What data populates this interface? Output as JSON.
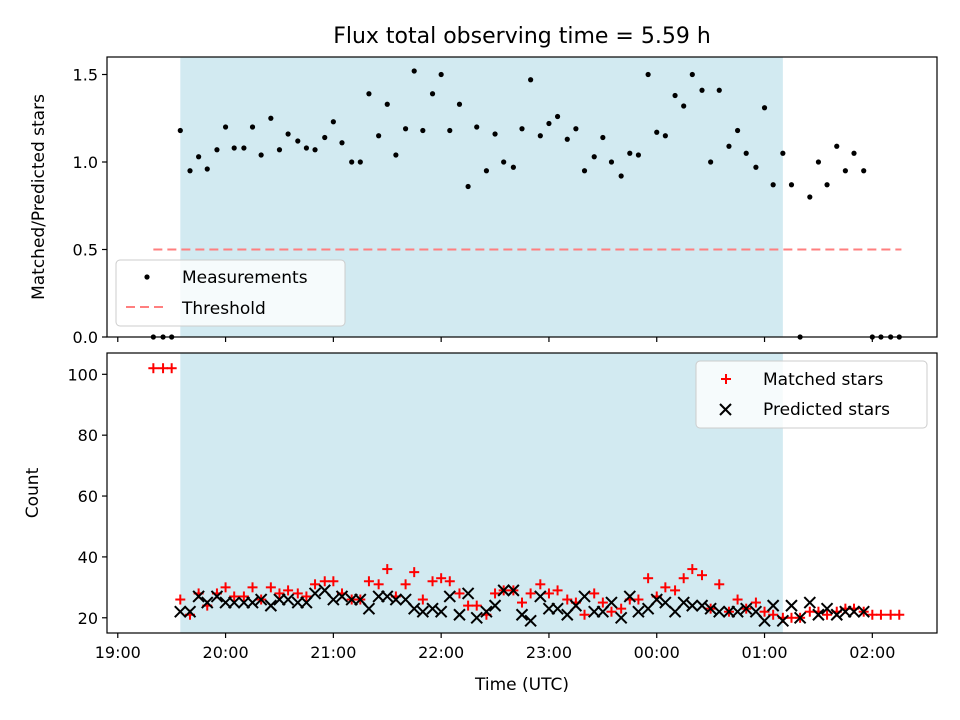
{
  "title": "Flux total observing time = 5.59 h",
  "colors": {
    "measurement": "#000000",
    "threshold": "#ff7f7f",
    "matched": "#ff0000",
    "predicted": "#000000",
    "observing_band": "#add8e6"
  },
  "chart_data": [
    {
      "type": "scatter",
      "panel": "top",
      "title": "Flux total observing time = 5.59 h",
      "xlabel": "",
      "ylabel": "Matched/Predicted stars",
      "x_units": "hours since 19:00 UTC",
      "xlim": [
        -0.1,
        7.6
      ],
      "ylim": [
        0.0,
        1.6
      ],
      "y_ticks": [
        "0.0",
        "0.5",
        "1.0",
        "1.5"
      ],
      "grid": false,
      "legend_position": "lower-left",
      "observing_band": [
        0.58,
        6.17
      ],
      "threshold": {
        "name": "Threshold",
        "y": 0.5,
        "x_range": [
          0.33,
          7.27
        ],
        "style": "dashed"
      },
      "series": [
        {
          "name": "Measurements",
          "x": [
            0.33,
            0.42,
            0.5,
            0.58,
            0.67,
            0.75,
            0.83,
            0.92,
            1.0,
            1.08,
            1.17,
            1.25,
            1.33,
            1.42,
            1.5,
            1.58,
            1.67,
            1.75,
            1.83,
            1.92,
            2.0,
            2.08,
            2.17,
            2.25,
            2.33,
            2.42,
            2.5,
            2.58,
            2.67,
            2.75,
            2.83,
            2.92,
            3.0,
            3.08,
            3.17,
            3.25,
            3.33,
            3.42,
            3.5,
            3.58,
            3.67,
            3.75,
            3.83,
            3.92,
            4.0,
            4.08,
            4.17,
            4.25,
            4.33,
            4.42,
            4.5,
            4.58,
            4.67,
            4.75,
            4.83,
            4.92,
            5.0,
            5.08,
            5.17,
            5.25,
            5.33,
            5.42,
            5.5,
            5.58,
            5.67,
            5.75,
            5.83,
            5.92,
            6.0,
            6.08,
            6.17,
            6.25,
            6.33,
            6.42,
            6.5,
            6.58,
            6.67,
            6.75,
            6.83,
            6.92,
            7.0,
            7.08,
            7.17,
            7.25
          ],
          "y": [
            0.0,
            0.0,
            0.0,
            1.18,
            0.95,
            1.03,
            0.96,
            1.07,
            1.2,
            1.08,
            1.08,
            1.2,
            1.04,
            1.25,
            1.07,
            1.16,
            1.12,
            1.08,
            1.07,
            1.14,
            1.23,
            1.11,
            1.0,
            1.0,
            1.39,
            1.15,
            1.33,
            1.04,
            1.19,
            1.52,
            1.18,
            1.39,
            1.5,
            1.18,
            1.33,
            0.86,
            1.2,
            0.95,
            1.16,
            1.0,
            0.97,
            1.19,
            1.47,
            1.15,
            1.22,
            1.26,
            1.13,
            1.19,
            0.95,
            1.03,
            1.14,
            1.0,
            0.92,
            1.05,
            1.04,
            1.5,
            1.17,
            1.15,
            1.38,
            1.32,
            1.5,
            1.41,
            1.0,
            1.41,
            1.09,
            1.18,
            1.05,
            0.97,
            1.31,
            0.87,
            1.05,
            0.87,
            0.0,
            0.8,
            1.0,
            0.87,
            1.09,
            0.95,
            1.05,
            0.95,
            0.0,
            0.0,
            0.0,
            0.0
          ]
        }
      ]
    },
    {
      "type": "scatter",
      "panel": "bottom",
      "xlabel": "Time (UTC)",
      "ylabel": "Count",
      "x_units": "hours since 19:00 UTC",
      "xlim": [
        -0.1,
        7.6
      ],
      "ylim": [
        15,
        107
      ],
      "x_ticks": [
        "19:00",
        "20:00",
        "21:00",
        "22:00",
        "23:00",
        "00:00",
        "01:00",
        "02:00"
      ],
      "y_ticks": [
        "20",
        "40",
        "60",
        "80",
        "100"
      ],
      "grid": false,
      "legend_position": "top-right",
      "observing_band": [
        0.58,
        6.17
      ],
      "series": [
        {
          "name": "Matched stars",
          "marker": "plus",
          "x": [
            0.33,
            0.42,
            0.5,
            0.58,
            0.67,
            0.75,
            0.83,
            0.92,
            1.0,
            1.08,
            1.17,
            1.25,
            1.33,
            1.42,
            1.5,
            1.58,
            1.67,
            1.75,
            1.83,
            1.92,
            2.0,
            2.08,
            2.17,
            2.25,
            2.33,
            2.42,
            2.5,
            2.58,
            2.67,
            2.75,
            2.83,
            2.92,
            3.0,
            3.08,
            3.17,
            3.25,
            3.33,
            3.42,
            3.5,
            3.58,
            3.67,
            3.75,
            3.83,
            3.92,
            4.0,
            4.08,
            4.17,
            4.25,
            4.33,
            4.42,
            4.5,
            4.58,
            4.67,
            4.75,
            4.83,
            4.92,
            5.0,
            5.08,
            5.17,
            5.25,
            5.33,
            5.42,
            5.5,
            5.58,
            5.67,
            5.75,
            5.83,
            5.92,
            6.0,
            6.08,
            6.17,
            6.25,
            6.33,
            6.42,
            6.5,
            6.58,
            6.67,
            6.75,
            6.83,
            6.92,
            7.0,
            7.08,
            7.17,
            7.25
          ],
          "y": [
            102,
            102,
            102,
            26,
            21,
            28,
            24,
            28,
            30,
            27,
            27,
            30,
            26,
            30,
            28,
            29,
            28,
            27,
            31,
            32,
            32,
            28,
            26,
            26,
            32,
            31,
            36,
            27,
            31,
            35,
            26,
            32,
            33,
            32,
            28,
            24,
            24,
            21,
            28,
            29,
            29,
            25,
            28,
            31,
            28,
            29,
            26,
            25,
            21,
            28,
            25,
            22,
            23,
            26,
            26,
            33,
            27,
            30,
            29,
            33,
            36,
            34,
            23,
            31,
            22,
            26,
            23,
            25,
            22,
            21,
            20,
            20,
            20,
            22,
            22,
            21,
            22,
            23,
            23,
            22,
            21,
            21,
            21,
            21
          ]
        },
        {
          "name": "Predicted stars",
          "marker": "x",
          "x": [
            0.58,
            0.67,
            0.75,
            0.83,
            0.92,
            1.0,
            1.08,
            1.17,
            1.25,
            1.33,
            1.42,
            1.5,
            1.58,
            1.67,
            1.75,
            1.83,
            1.92,
            2.0,
            2.08,
            2.17,
            2.25,
            2.33,
            2.42,
            2.5,
            2.58,
            2.67,
            2.75,
            2.83,
            2.92,
            3.0,
            3.08,
            3.17,
            3.25,
            3.33,
            3.42,
            3.5,
            3.58,
            3.67,
            3.75,
            3.83,
            3.92,
            4.0,
            4.08,
            4.17,
            4.25,
            4.33,
            4.42,
            4.5,
            4.58,
            4.67,
            4.75,
            4.83,
            4.92,
            5.0,
            5.08,
            5.17,
            5.25,
            5.33,
            5.42,
            5.5,
            5.58,
            5.67,
            5.75,
            5.83,
            5.92,
            6.0,
            6.08,
            6.17,
            6.25,
            6.33,
            6.42,
            6.5,
            6.58,
            6.67,
            6.75,
            6.83,
            6.92
          ],
          "y": [
            22,
            22,
            27,
            25,
            27,
            25,
            25,
            25,
            25,
            26,
            24,
            26,
            26,
            25,
            25,
            28,
            29,
            26,
            27,
            26,
            26,
            23,
            27,
            27,
            26,
            26,
            23,
            22,
            23,
            22,
            27,
            21,
            28,
            20,
            22,
            24,
            29,
            29,
            21,
            19,
            27,
            23,
            23,
            21,
            24,
            27,
            22,
            22,
            25,
            20,
            27,
            22,
            23,
            26,
            25,
            22,
            25,
            24,
            24,
            23,
            22,
            22,
            22,
            23,
            22,
            19,
            24,
            19,
            24,
            20,
            25,
            21,
            23,
            21,
            22,
            22,
            22
          ]
        }
      ]
    }
  ]
}
